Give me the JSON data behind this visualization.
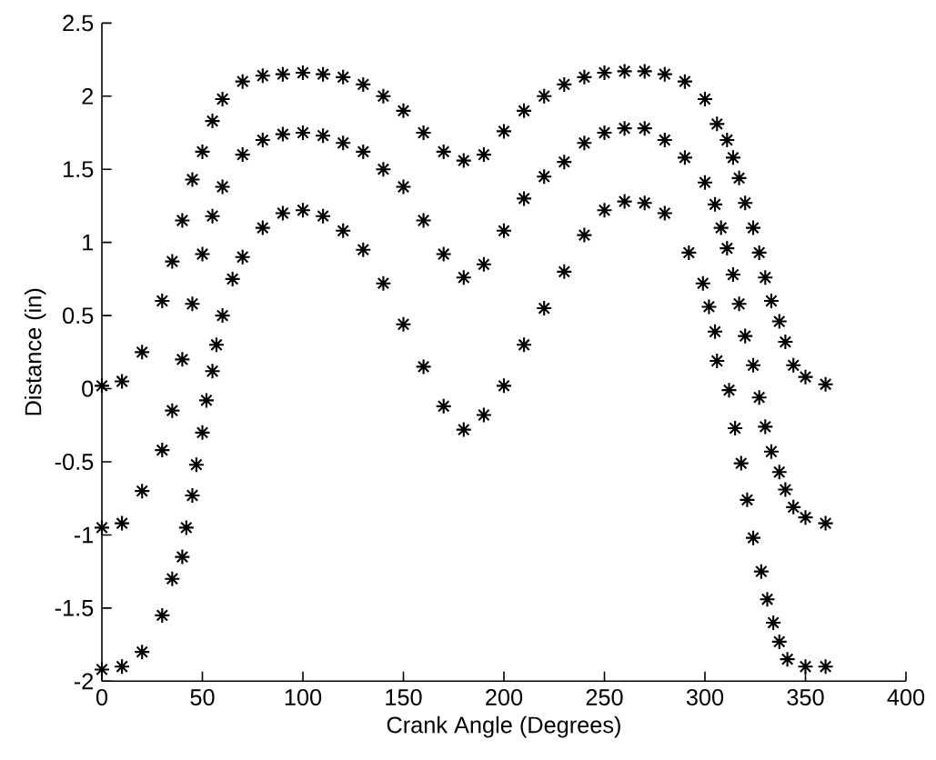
{
  "chart_data": {
    "type": "scatter",
    "xlabel": "Crank Angle (Degrees)",
    "ylabel": "Distance (in)",
    "xlim": [
      0,
      400
    ],
    "ylim": [
      -2,
      2.5
    ],
    "xticks": [
      0,
      50,
      100,
      150,
      200,
      250,
      300,
      350,
      400
    ],
    "yticks": [
      -2,
      -1.5,
      -1,
      -0.5,
      0,
      0.5,
      1,
      1.5,
      2,
      2.5
    ],
    "marker": "cross",
    "grid": false,
    "series": [
      {
        "color": "#000000",
        "x": [
          0,
          10,
          20,
          30,
          35,
          40,
          45,
          50,
          55,
          60,
          70,
          80,
          90,
          100,
          110,
          120,
          130,
          140,
          150,
          160,
          170,
          180,
          190,
          200,
          210,
          220,
          230,
          240,
          250,
          260,
          270,
          280,
          290,
          300,
          306,
          311,
          314,
          317,
          320,
          324,
          327,
          330,
          333,
          337,
          340,
          344,
          350,
          360
        ],
        "values": [
          0.02,
          0.05,
          0.25,
          0.6,
          0.87,
          1.15,
          1.43,
          1.62,
          1.83,
          1.98,
          2.1,
          2.14,
          2.15,
          2.16,
          2.15,
          2.13,
          2.08,
          2.0,
          1.9,
          1.75,
          1.62,
          1.56,
          1.6,
          1.76,
          1.9,
          2.0,
          2.08,
          2.13,
          2.16,
          2.17,
          2.17,
          2.15,
          2.1,
          1.98,
          1.81,
          1.7,
          1.58,
          1.44,
          1.27,
          1.1,
          0.93,
          0.76,
          0.6,
          0.46,
          0.32,
          0.16,
          0.08,
          0.03
        ]
      },
      {
        "color": "#000000",
        "x": [
          0,
          10,
          20,
          30,
          35,
          40,
          45,
          50,
          55,
          60,
          70,
          80,
          90,
          100,
          110,
          120,
          130,
          140,
          150,
          160,
          170,
          180,
          190,
          200,
          210,
          220,
          230,
          240,
          250,
          260,
          270,
          280,
          290,
          300,
          305,
          308,
          311,
          314,
          317,
          320,
          324,
          327,
          330,
          333,
          337,
          340,
          344,
          350,
          360
        ],
        "values": [
          -0.95,
          -0.92,
          -0.7,
          -0.42,
          -0.15,
          0.2,
          0.58,
          0.92,
          1.18,
          1.38,
          1.6,
          1.7,
          1.74,
          1.75,
          1.73,
          1.68,
          1.62,
          1.5,
          1.38,
          1.15,
          0.92,
          0.76,
          0.85,
          1.08,
          1.3,
          1.45,
          1.55,
          1.68,
          1.75,
          1.78,
          1.78,
          1.7,
          1.58,
          1.41,
          1.26,
          1.1,
          0.96,
          0.78,
          0.58,
          0.36,
          0.16,
          -0.06,
          -0.26,
          -0.43,
          -0.57,
          -0.69,
          -0.81,
          -0.88,
          -0.92
        ]
      },
      {
        "color": "#000000",
        "x": [
          0,
          10,
          20,
          30,
          35,
          40,
          42,
          45,
          47,
          50,
          52,
          55,
          57,
          60,
          65,
          70,
          80,
          90,
          100,
          110,
          120,
          130,
          140,
          150,
          160,
          170,
          180,
          190,
          200,
          210,
          220,
          230,
          240,
          250,
          260,
          270,
          280,
          292,
          299,
          302,
          305,
          306,
          312,
          315,
          318,
          321,
          324,
          328,
          331,
          334,
          337,
          341,
          350,
          360
        ],
        "values": [
          -1.92,
          -1.9,
          -1.8,
          -1.55,
          -1.3,
          -1.15,
          -0.95,
          -0.73,
          -0.52,
          -0.3,
          -0.08,
          0.12,
          0.3,
          0.5,
          0.75,
          0.9,
          1.1,
          1.2,
          1.22,
          1.18,
          1.08,
          0.95,
          0.72,
          0.44,
          0.15,
          -0.12,
          -0.28,
          -0.18,
          0.02,
          0.3,
          0.55,
          0.8,
          1.05,
          1.22,
          1.28,
          1.27,
          1.2,
          0.93,
          0.72,
          0.56,
          0.39,
          0.19,
          -0.01,
          -0.27,
          -0.51,
          -0.76,
          -1.02,
          -1.25,
          -1.44,
          -1.6,
          -1.73,
          -1.85,
          -1.9,
          -1.9
        ]
      }
    ]
  }
}
